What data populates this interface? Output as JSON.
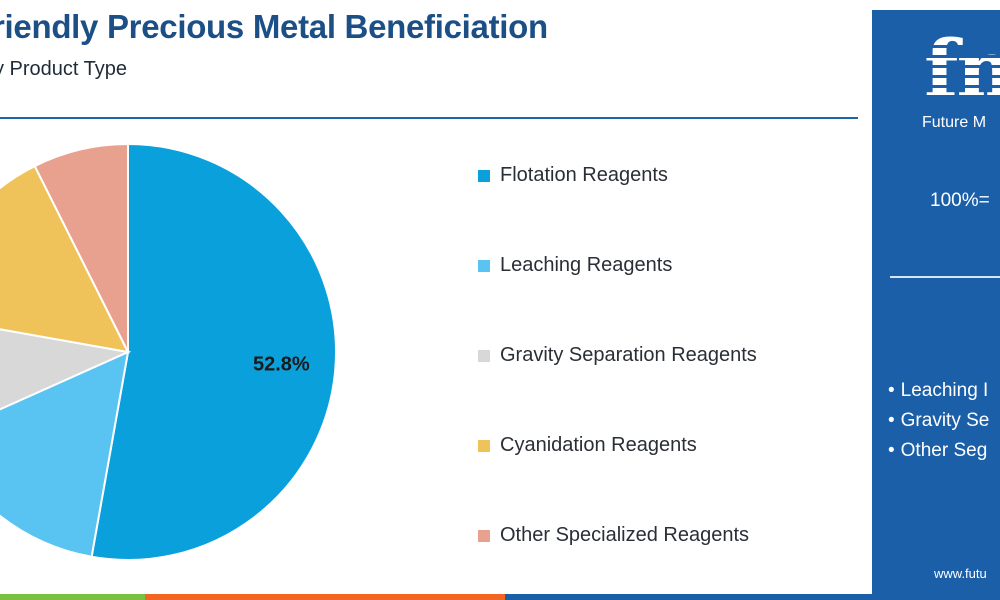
{
  "chart_data": {
    "type": "pie",
    "title": "riendly Precious Metal Beneficiation",
    "subtitle": "y Product Type",
    "slices": [
      {
        "label": "Flotation Reagents",
        "value": 52.8,
        "color": "#0aa0dc",
        "data_label": "52.8%"
      },
      {
        "label": "Leaching Reagents",
        "value": 15.5,
        "color": "#59c4f2",
        "data_label": ""
      },
      {
        "label": "Gravity Separation Reagents",
        "value": 9.5,
        "color": "#d8d8d8",
        "data_label": ""
      },
      {
        "label": "Cyanidation Reagents",
        "value": 14.8,
        "color": "#efc35a",
        "data_label": ""
      },
      {
        "label": "Other Specialized Reagents",
        "value": 7.4,
        "color": "#e9a18f",
        "data_label": ""
      }
    ],
    "legend_position": "right"
  },
  "side_panel": {
    "brand_mark": "fm",
    "brand_name": "Future M",
    "total_label": "100%=",
    "bullets": [
      "Leaching I",
      "Gravity Se",
      "Other Seg"
    ],
    "website": "www.futu"
  },
  "colors": {
    "title": "#1b4f86",
    "panel": "#1a5fa8",
    "bottom_bar": [
      "#7ac142",
      "#f26522",
      "#1a5fa8"
    ]
  }
}
